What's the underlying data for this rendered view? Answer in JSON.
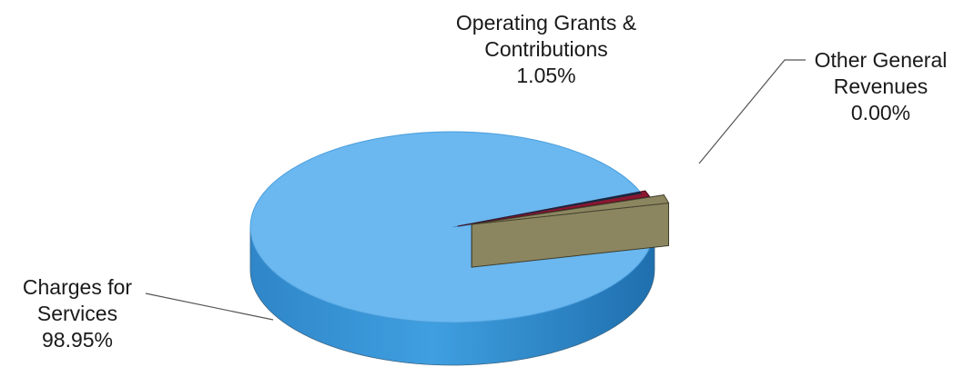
{
  "chart_data": {
    "type": "pie",
    "title": "",
    "categories": [
      "Charges for Services",
      "Operating Grants & Contributions",
      "Other General Revenues"
    ],
    "values": [
      98.95,
      1.05,
      0.0
    ],
    "slices": [
      {
        "label_lines": [
          "Charges for",
          "Services"
        ],
        "value_label": "98.95%",
        "value": 98.95,
        "color": "#6bb7f0"
      },
      {
        "label_lines": [
          "Operating Grants &",
          "Contributions"
        ],
        "value_label": "1.05%",
        "value": 1.05,
        "color": "#8a1630"
      },
      {
        "label_lines": [
          "Other General",
          "Revenues"
        ],
        "value_label": "0.00%",
        "value": 0.0,
        "color": "#8c8660"
      }
    ],
    "legend": "none",
    "grid": false,
    "style": "3d"
  }
}
